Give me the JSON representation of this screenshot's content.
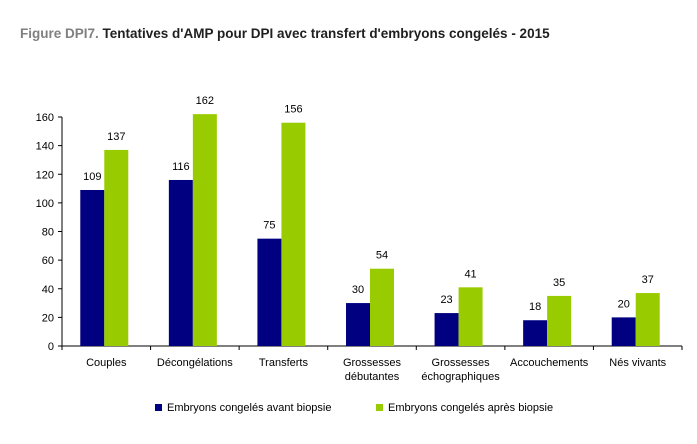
{
  "title_prefix": "Figure DPI7.",
  "title": "Tentatives d'AMP pour DPI avec transfert d'embryons congelés - 2015",
  "chart_data": {
    "type": "bar",
    "title": "Figure DPI7. Tentatives d'AMP pour DPI avec transfert d'embryons congelés - 2015",
    "categories": [
      [
        "Couples"
      ],
      [
        "Décongélations"
      ],
      [
        "Transferts"
      ],
      [
        "Grossesses",
        "débutantes"
      ],
      [
        "Grossesses",
        "échographiques"
      ],
      [
        "Accouchements"
      ],
      [
        "Nés vivants"
      ]
    ],
    "series": [
      {
        "name": "Embryons congelés avant biopsie",
        "color": "#000080",
        "values": [
          109,
          116,
          75,
          30,
          23,
          18,
          20
        ]
      },
      {
        "name": "Embryons congelés après biopsie",
        "color": "#99cc00",
        "values": [
          137,
          162,
          156,
          54,
          41,
          35,
          37
        ]
      }
    ],
    "yticks": [
      0,
      20,
      40,
      60,
      80,
      100,
      120,
      140,
      160
    ],
    "ylim": [
      0,
      160
    ],
    "grid": false,
    "legend_position": "bottom"
  }
}
